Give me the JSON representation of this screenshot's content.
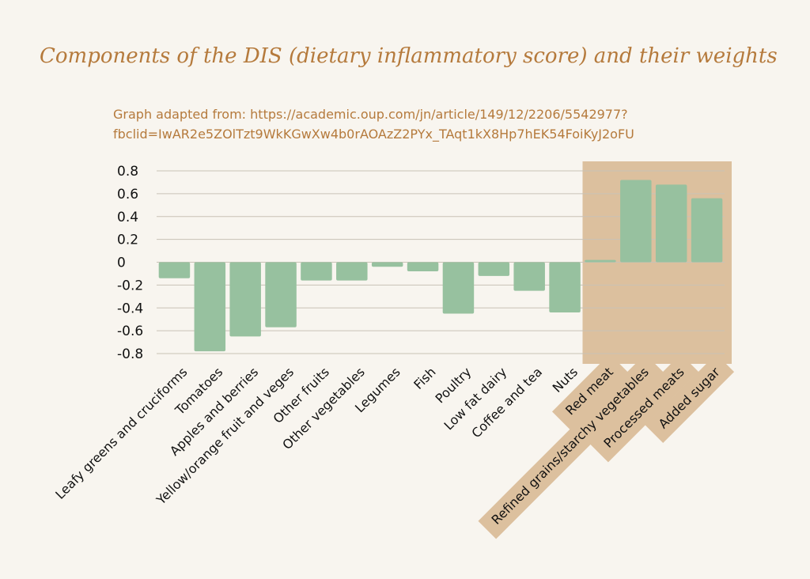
{
  "title": "Components of the DIS (dietary inflammatory score) and their weights",
  "subtitle_lines": [
    "Graph adapted from: https://academic.oup.com/jn/article/149/12/2206/5542977?",
    "fbclid=IwAR2e5ZOlTzt9WkKGwXw4b0rAOAzZ2PYx_TAqt1kX8Hp7hEK54FoiKyJ2oFU"
  ],
  "colors": {
    "bar": "#97c19f",
    "highlight": "#dcc09e",
    "title": "#b57a3c",
    "grid": "#c9c2b6",
    "background": "#f8f5ef"
  },
  "chart_data": {
    "type": "bar",
    "categories": [
      "Leafy greens and cruciforms",
      "Tomatoes",
      "Apples and berries",
      "Yellow/orange fruit and veges",
      "Other fruits",
      "Other vegetables",
      "Legumes",
      "Fish",
      "Poultry",
      "Low fat dairy",
      "Coffee and tea",
      "Nuts",
      "Red meat",
      "Refined grains/starchy vegetables",
      "Processed meats",
      "Added sugar"
    ],
    "values": [
      -0.14,
      -0.78,
      -0.65,
      -0.57,
      -0.16,
      -0.16,
      -0.04,
      -0.08,
      -0.45,
      -0.12,
      -0.25,
      -0.44,
      0.02,
      0.72,
      0.68,
      0.56
    ],
    "highlighted_categories": [
      "Red meat",
      "Refined grains/starchy vegetables",
      "Processed meats",
      "Added sugar"
    ],
    "yticks": [
      "0.8",
      "0.6",
      "0.4",
      "0.2",
      "0",
      "-0.2",
      "-0.4",
      "-0.6",
      "-0.8"
    ],
    "ylim": [
      -0.8,
      0.8
    ],
    "grid": true,
    "legend": "none"
  }
}
